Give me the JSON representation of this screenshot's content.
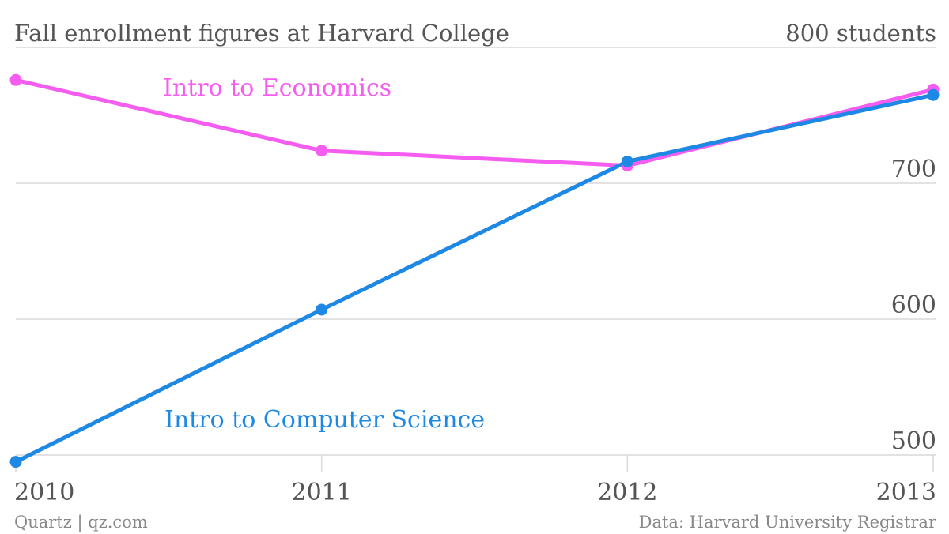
{
  "header": {
    "title": "Fall enrollment figures at Harvard College",
    "unit_label": "800 students"
  },
  "footer": {
    "source_left": "Quartz | qz.com",
    "source_right": "Data: Harvard University Registrar"
  },
  "chart_data": {
    "type": "line",
    "title": "Fall enrollment figures at Harvard College",
    "xlabel": "",
    "ylabel": "",
    "x": [
      "2010",
      "2011",
      "2012",
      "2013"
    ],
    "ylim": [
      500,
      800
    ],
    "yticks": [
      500,
      600,
      700
    ],
    "ytick_labels": [
      "500",
      "600",
      "700"
    ],
    "top_tick_label": "800 students",
    "grid": true,
    "legend": "inline labels",
    "series": [
      {
        "name": "Intro to Economics",
        "color": "#f55cf0",
        "values": [
          776,
          724,
          713,
          769
        ]
      },
      {
        "name": "Intro to Computer Science",
        "color": "#1e88e5",
        "values": [
          495,
          607,
          716,
          765
        ]
      }
    ]
  }
}
